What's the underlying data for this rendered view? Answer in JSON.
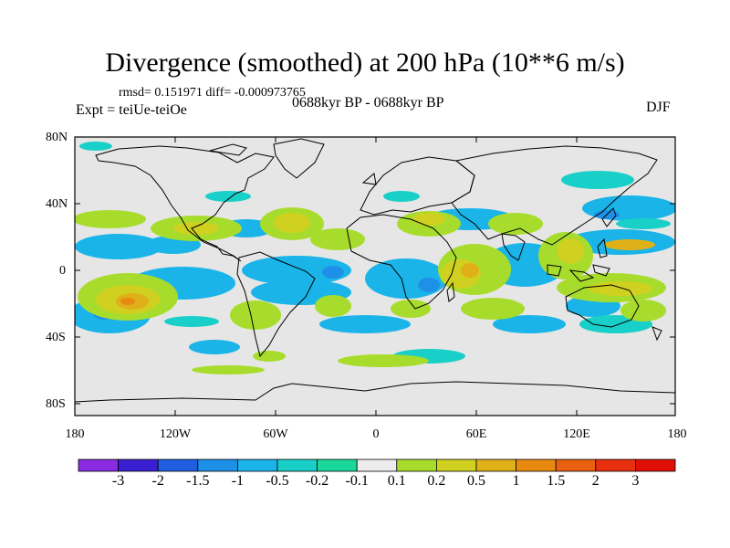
{
  "title": "Divergence (smoothed) at 200 hPa (10**6 m/s)",
  "stats": "rmsd= 0.151971 diff= -0.000973765",
  "experiment": "Expt = teiUe-teiOe",
  "period": "0688kyr BP - 0688kyr BP",
  "season": "DJF",
  "lat_labels": [
    "80N",
    "40N",
    "0",
    "40S",
    "80S"
  ],
  "lon_labels": [
    "180",
    "120W",
    "60W",
    "0",
    "60E",
    "120E",
    "180"
  ],
  "colorbar": {
    "labels": [
      "-3",
      "-2",
      "-1.5",
      "-1",
      "-0.5",
      "-0.2",
      "-0.1",
      "0.1",
      "0.2",
      "0.5",
      "1",
      "1.5",
      "2",
      "3"
    ],
    "colors": [
      "#8a2be2",
      "#3a1fd0",
      "#1f5ee0",
      "#1e90e8",
      "#1ab4e8",
      "#18d0c8",
      "#1ad89a",
      "#ececec",
      "#a8dc2c",
      "#d0d020",
      "#e0b018",
      "#e88a10",
      "#e86010",
      "#e83010",
      "#e01008"
    ]
  },
  "colors": {
    "land_ocean_bg": "#e6e6e6",
    "coast": "#000000"
  }
}
